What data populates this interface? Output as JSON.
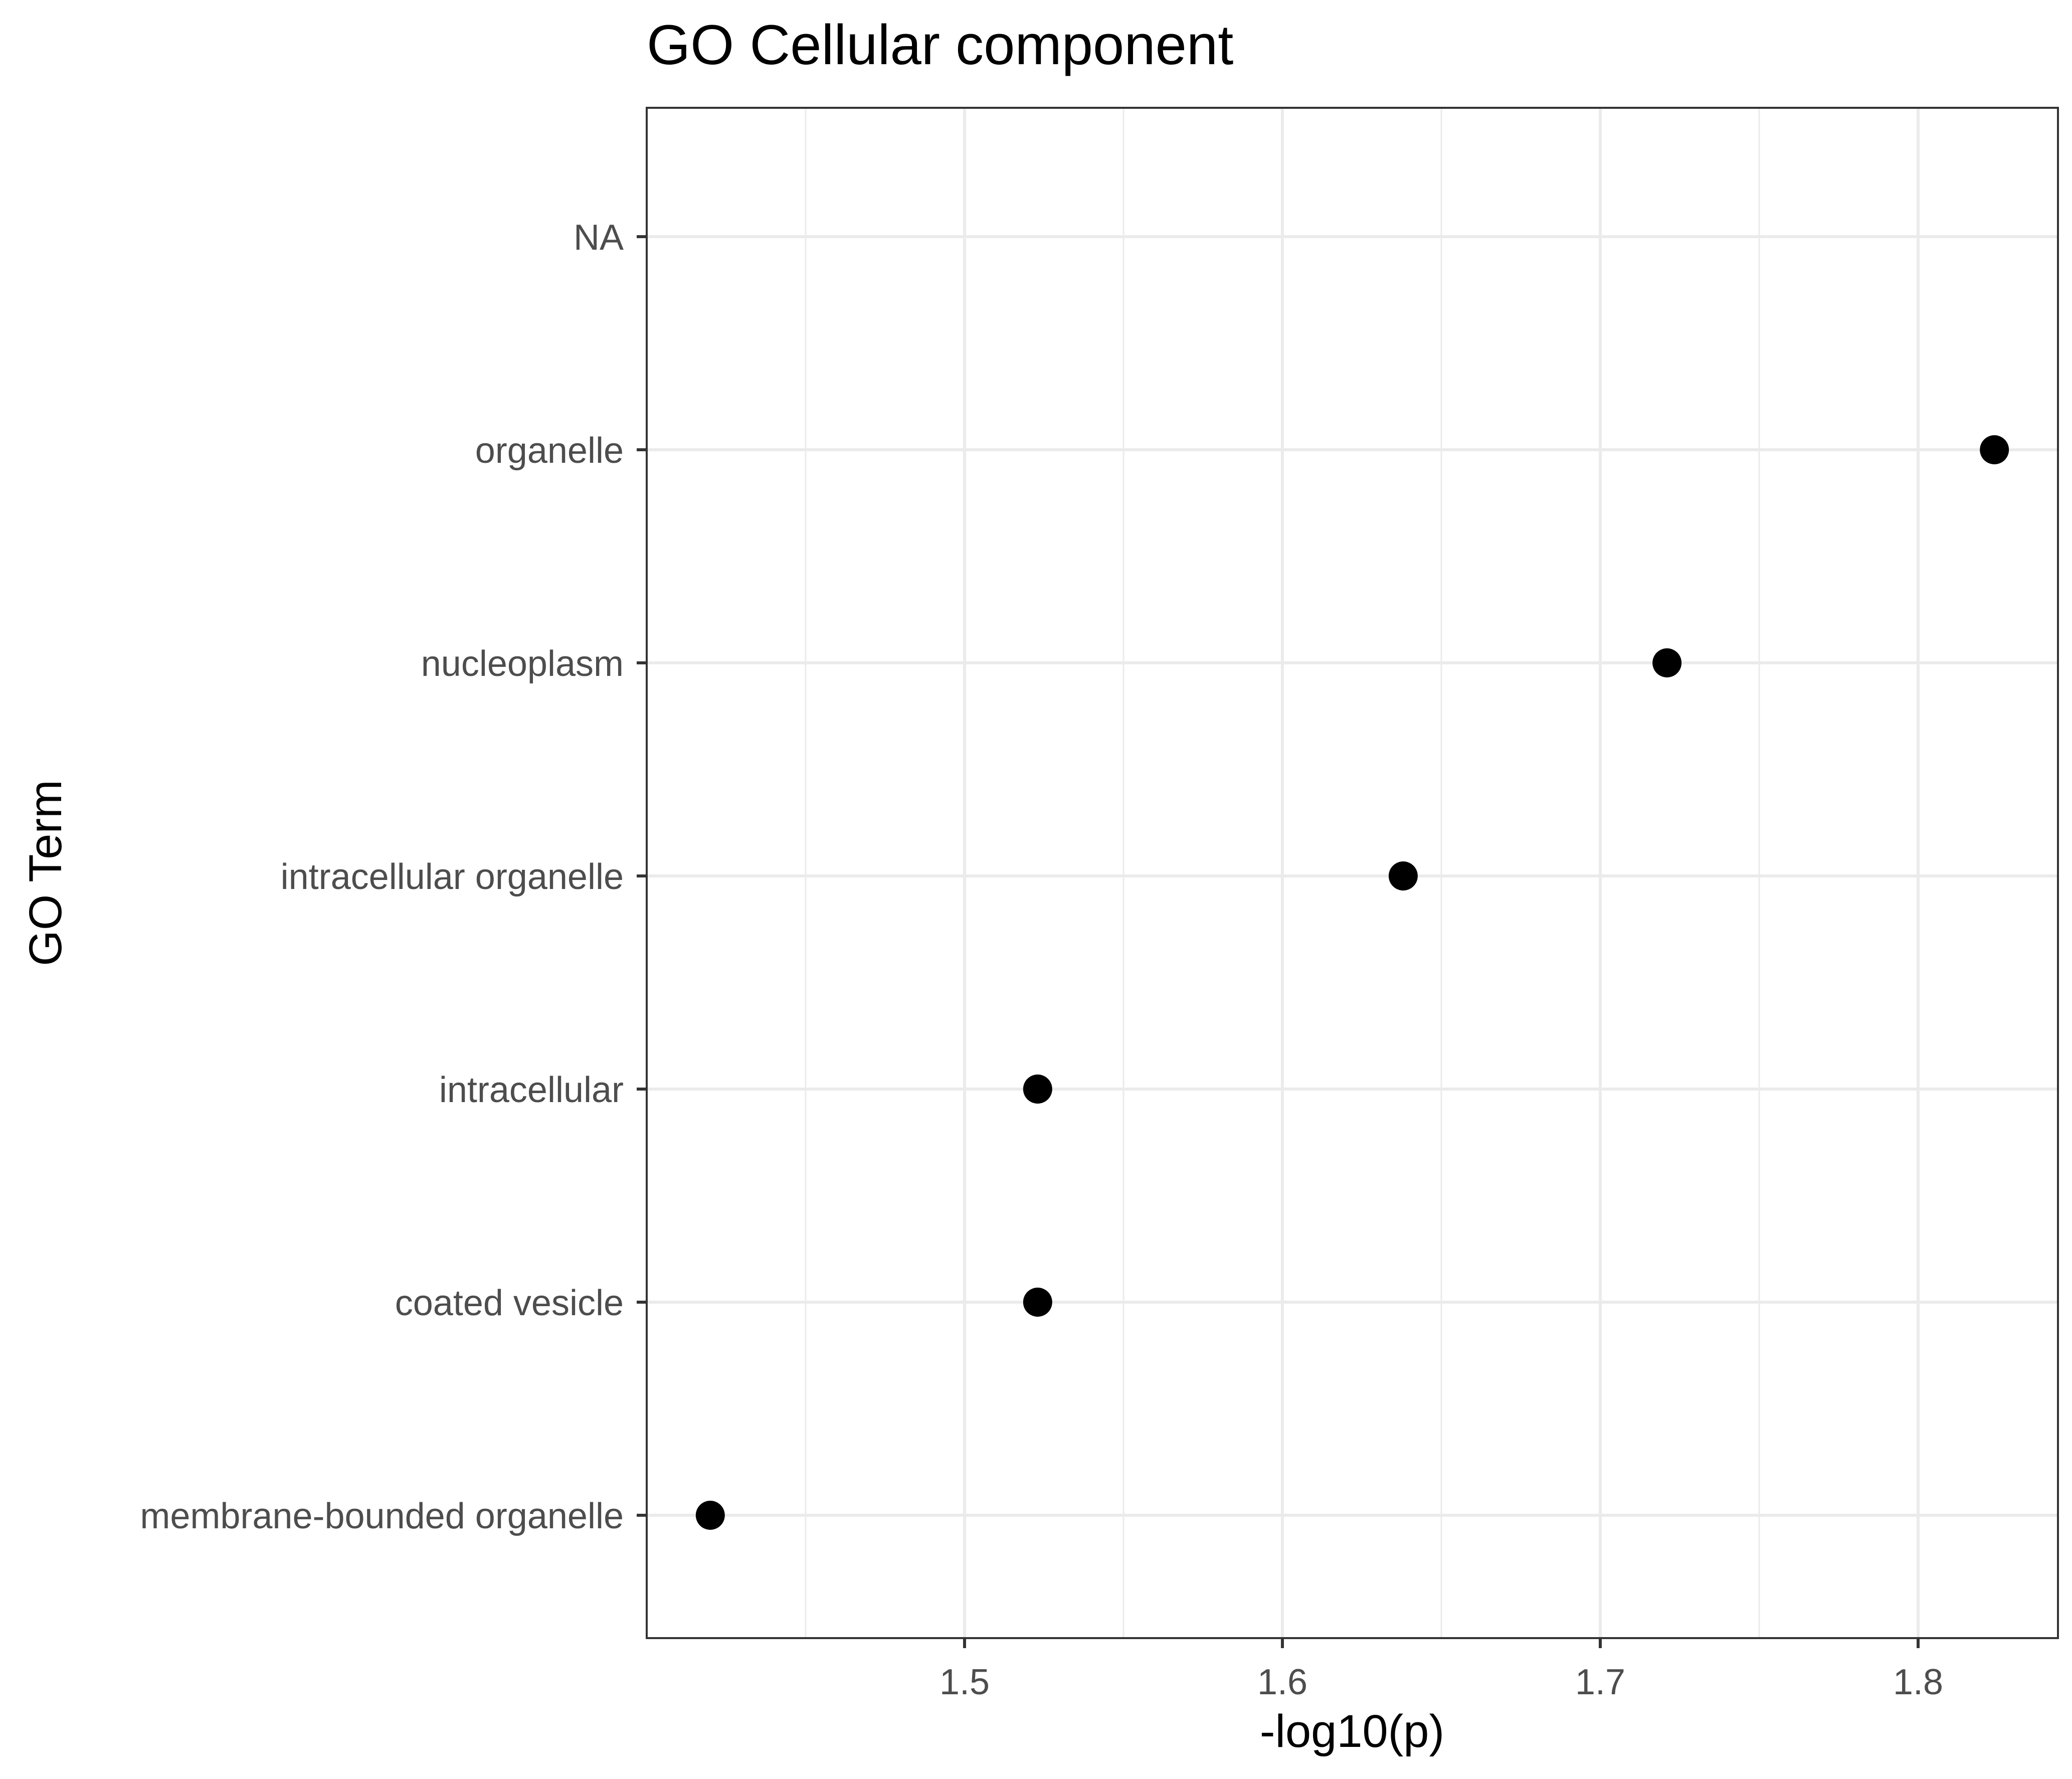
{
  "chart_data": {
    "type": "scatter",
    "title": "GO Cellular component",
    "xlabel": "-log10(p)",
    "ylabel": "GO Term",
    "categories": [
      "membrane-bounded organelle",
      "coated vesicle",
      "intracellular",
      "intracellular organelle",
      "nucleoplasm",
      "organelle",
      "NA"
    ],
    "points": [
      {
        "term": "membrane-bounded organelle",
        "value": 1.42
      },
      {
        "term": "coated vesicle",
        "value": 1.523
      },
      {
        "term": "intracellular",
        "value": 1.523
      },
      {
        "term": "intracellular organelle",
        "value": 1.638
      },
      {
        "term": "nucleoplasm",
        "value": 1.721
      },
      {
        "term": "organelle",
        "value": 1.824
      }
    ],
    "xlim": [
      1.4,
      1.844
    ],
    "xticks": [
      "1.5",
      "1.6",
      "1.7",
      "1.8"
    ],
    "xminor": [
      1.45,
      1.55,
      1.65,
      1.75
    ],
    "grid": true,
    "colors": {
      "point": "#000000",
      "grid_major": "#ebebeb",
      "grid_minor": "#ebebeb",
      "panel_border": "#333333",
      "tick_text": "#4d4d4d",
      "axis_title": "#000000"
    }
  }
}
